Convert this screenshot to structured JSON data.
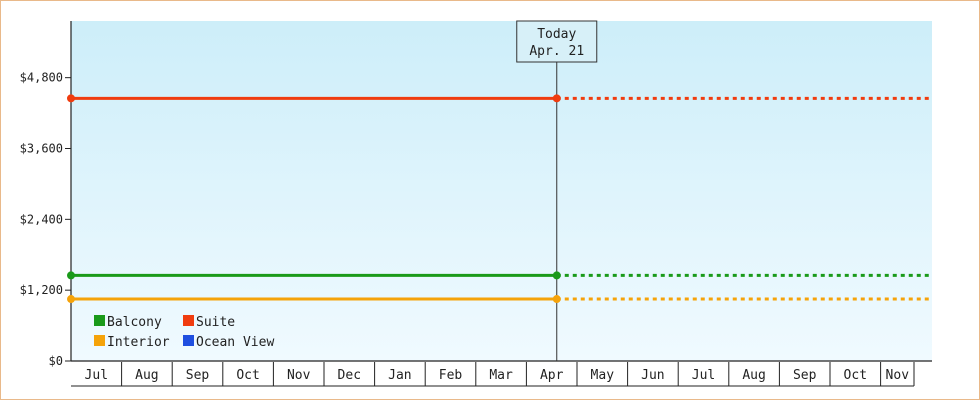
{
  "chart_data": {
    "type": "line",
    "title": "",
    "xlabel": "",
    "ylabel": "",
    "ylim": [
      0,
      5760
    ],
    "y_ticks": [
      {
        "value": 0,
        "label": "$0"
      },
      {
        "value": 1200,
        "label": "$1,200"
      },
      {
        "value": 2400,
        "label": "$2,400"
      },
      {
        "value": 3600,
        "label": "$3,600"
      },
      {
        "value": 4800,
        "label": "$4,800"
      }
    ],
    "months": [
      "Jul",
      "Aug",
      "Sep",
      "Oct",
      "Nov",
      "Dec",
      "Jan",
      "Feb",
      "Mar",
      "Apr",
      "May",
      "Jun",
      "Jul",
      "Aug",
      "Sep",
      "Oct",
      "Nov"
    ],
    "today": {
      "label": "Today",
      "date": "Apr. 21",
      "month_index": 9.6
    },
    "series": [
      {
        "name": "Balcony",
        "color": "#1a9a1a",
        "value": 1450
      },
      {
        "name": "Suite",
        "color": "#f03c0f",
        "value": 4450
      },
      {
        "name": "Interior",
        "color": "#f5a30a",
        "value": 1050
      },
      {
        "name": "Ocean View",
        "color": "#1f4fe0",
        "value": null
      }
    ],
    "grid": false,
    "legend_position": "bottom-left",
    "background": {
      "top": "#cdeef9",
      "bottom": "#f0faff"
    }
  }
}
